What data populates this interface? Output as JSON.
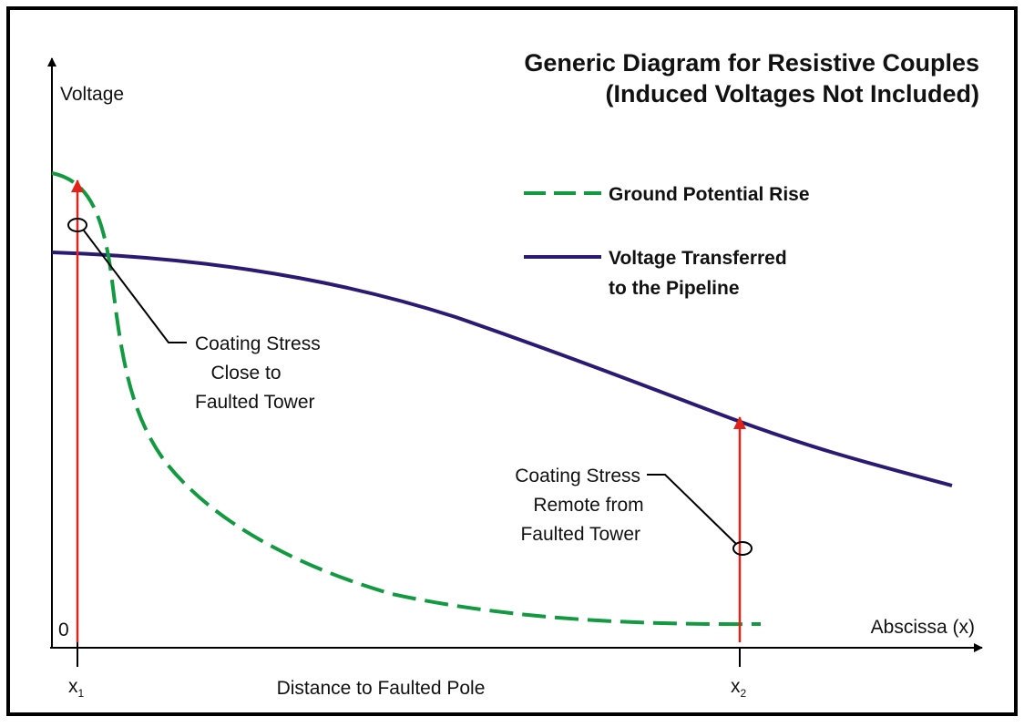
{
  "title": {
    "line1": "Generic Diagram for Resistive Couples",
    "line2": "(Induced Voltages Not Included)"
  },
  "axes": {
    "y_label": "Voltage",
    "x_label": "Abscissa (x)",
    "origin": "0",
    "x_caption": "Distance to Faulted Pole"
  },
  "legend": [
    {
      "lines": [
        "Ground Potential Rise"
      ]
    },
    {
      "lines": [
        "Voltage Transferred",
        "to the Pipeline"
      ]
    }
  ],
  "annotations": [
    {
      "lines": [
        "Coating Stress",
        "Close to",
        "Faulted Tower"
      ]
    },
    {
      "lines": [
        "Coating Stress",
        "Remote from",
        "Faulted Tower"
      ]
    }
  ],
  "markers": [
    {
      "label": "x",
      "subscript": "1"
    },
    {
      "label": "x",
      "subscript": "2"
    }
  ]
}
